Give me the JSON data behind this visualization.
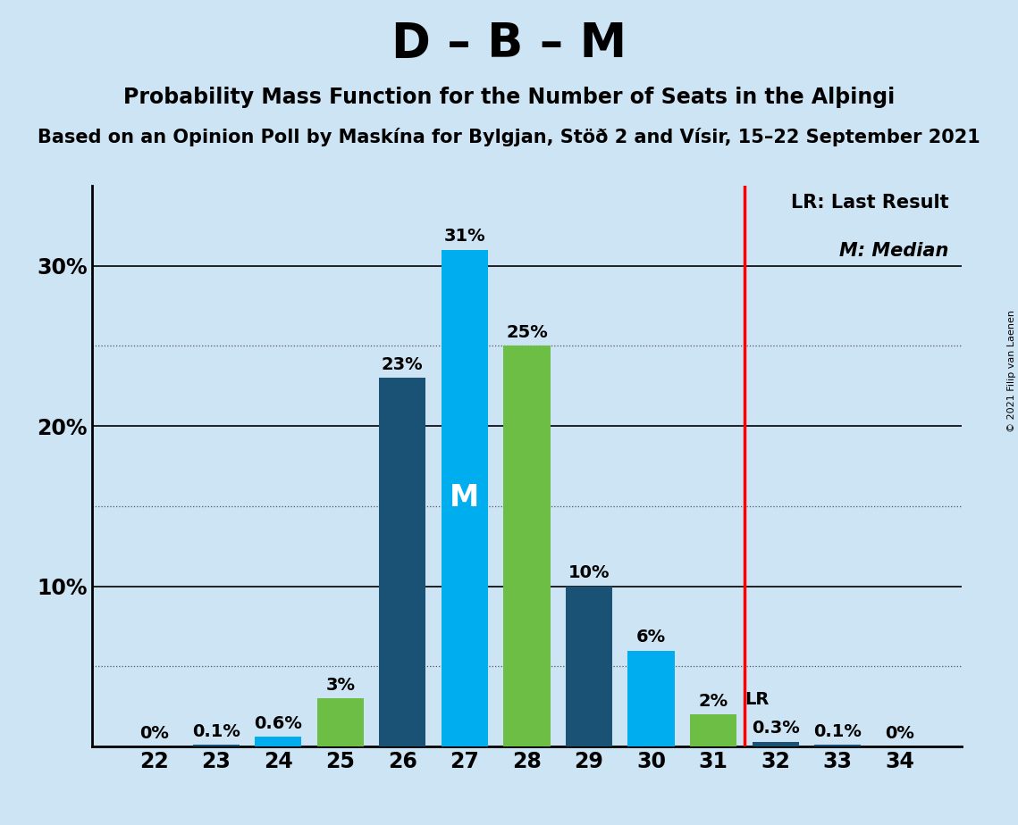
{
  "title": "D – B – M",
  "subtitle1": "Probability Mass Function for the Number of Seats in the Alþingi",
  "subtitle2": "Based on an Opinion Poll by Maskína for Bylgjan, Stöð 2 and Vísir, 15–22 September 2021",
  "copyright": "© 2021 Filip van Laenen",
  "seats": [
    22,
    23,
    24,
    25,
    26,
    27,
    28,
    29,
    30,
    31,
    32,
    33,
    34
  ],
  "probabilities": [
    0.0,
    0.1,
    0.6,
    3.0,
    23.0,
    31.0,
    25.0,
    10.0,
    6.0,
    2.0,
    0.3,
    0.1,
    0.0
  ],
  "bar_colors": [
    "#1a5276",
    "#1a5276",
    "#00aeef",
    "#6dbe45",
    "#1a5276",
    "#00aeef",
    "#6dbe45",
    "#1a5276",
    "#00aeef",
    "#6dbe45",
    "#1a5276",
    "#1a5276",
    "#1a5276"
  ],
  "median_seat": 27,
  "lr_seat": 31.5,
  "lr_label_seat": 31,
  "background_color": "#cde4f5",
  "plot_bg_color": "#cde4f5",
  "legend_lr": "LR: Last Result",
  "legend_m": "M: Median",
  "ylim": [
    0,
    35
  ],
  "bar_width": 0.75,
  "title_fontsize": 38,
  "subtitle1_fontsize": 17,
  "subtitle2_fontsize": 15,
  "tick_fontsize": 17,
  "label_fontsize": 14,
  "legend_fontsize": 15
}
